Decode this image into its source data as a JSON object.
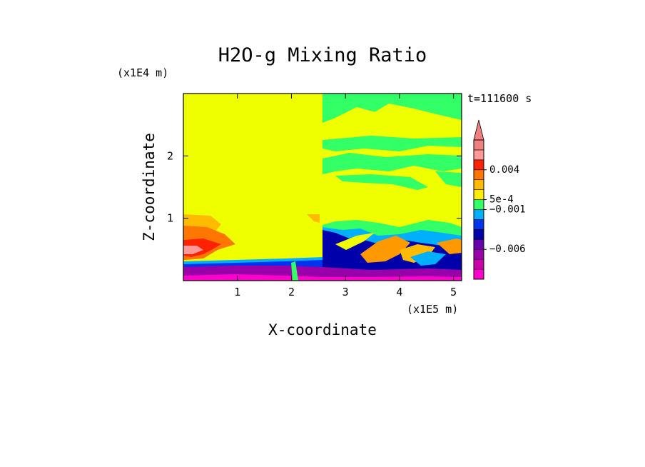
{
  "chart_data": {
    "type": "heatmap",
    "title": "H2O-g Mixing Ratio",
    "xlabel": "X-coordinate",
    "ylabel": "Z-coordinate",
    "x_scale_label": "(x1E5 m)",
    "y_scale_label": "(x1E4 m)",
    "time_label": "t=111600 s",
    "xlim": [
      0,
      5.15
    ],
    "ylim": [
      0,
      3.0
    ],
    "x_ticks": [
      {
        "value": 1,
        "label": "1"
      },
      {
        "value": 2,
        "label": "2"
      },
      {
        "value": 3,
        "label": "3"
      },
      {
        "value": 4,
        "label": "4"
      },
      {
        "value": 5,
        "label": "5"
      }
    ],
    "y_ticks": [
      {
        "value": 1,
        "label": "1"
      },
      {
        "value": 2,
        "label": "2"
      }
    ],
    "colorbar": {
      "extend": "max",
      "levels": [
        {
          "color": "#ff00cc"
        },
        {
          "color": "#cc00aa"
        },
        {
          "color": "#9900aa"
        },
        {
          "color": "#6600aa"
        },
        {
          "color": "#0000aa"
        },
        {
          "color": "#0033ee"
        },
        {
          "color": "#00b0ff"
        },
        {
          "color": "#33ff66"
        },
        {
          "color": "#ffee00"
        },
        {
          "color": "#ffbb00"
        },
        {
          "color": "#ff7700"
        },
        {
          "color": "#ff2200"
        },
        {
          "color": "#ff9999"
        },
        {
          "color": "#f08080"
        }
      ],
      "tick_labels": [
        {
          "label": "0.004",
          "level": 11
        },
        {
          "label": "5e-4",
          "level": 8
        },
        {
          "label": "−0.001",
          "level": 7
        },
        {
          "label": "−0.006",
          "level": 3
        }
      ]
    },
    "field_regions": [
      {
        "name": "background",
        "color": "#ffff00"
      },
      {
        "name": "upper-right-moist-bands",
        "color": "#33ff66"
      },
      {
        "name": "left-warm-lobe",
        "color": "#ff7700"
      },
      {
        "name": "left-warm-core",
        "color": "#ff2200"
      },
      {
        "name": "surface-dry-layer",
        "color": "#9900aa"
      },
      {
        "name": "lower-right-cold-pool",
        "color": "#0000aa"
      },
      {
        "name": "lower-right-filaments",
        "color": "#ff9900"
      }
    ]
  }
}
